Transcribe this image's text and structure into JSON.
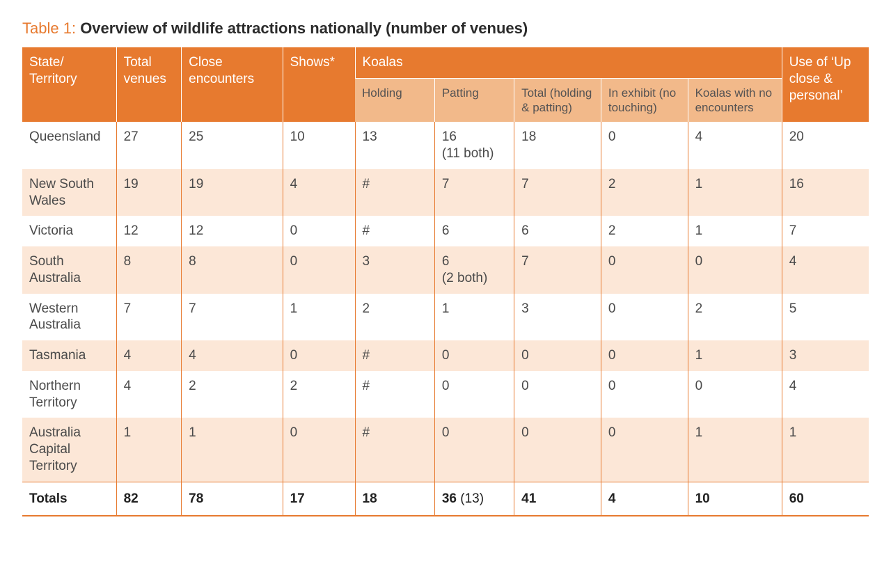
{
  "title": {
    "label": "Table 1:",
    "name": "Overview of wildlife attractions nationally (number of venues)"
  },
  "colors": {
    "header_bg": "#e77a2f",
    "subheader_bg": "#f2b98a",
    "stripe_bg": "#fce7d7",
    "rule": "#e77a2f",
    "header_text": "#ffffff",
    "body_text": "#4a4a4a"
  },
  "columns_top": {
    "state": "State/\nTerritory",
    "total_venues": "Total venues",
    "close_encounters": "Close encounters",
    "shows": "Shows*",
    "koalas": "Koalas",
    "use": "Use of ‘Up close & personal’"
  },
  "columns_sub": {
    "holding": "Holding",
    "patting": "Patting",
    "ktotal": "Total (holding & patting)",
    "kexhibit": "In exhibit (no touching)",
    "kno": "Koalas with no encounters"
  },
  "rows": [
    {
      "state": "Queensland",
      "total": "27",
      "close": "25",
      "shows": "10",
      "holding": "13",
      "patting": "16\n(11 both)",
      "ktotal": "18",
      "kexhibit": "0",
      "kno": "4",
      "use": "20"
    },
    {
      "state": "New South Wales",
      "total": "19",
      "close": "19",
      "shows": "4",
      "holding": "#",
      "patting": "7",
      "ktotal": "7",
      "kexhibit": "2",
      "kno": "1",
      "use": "16"
    },
    {
      "state": "Victoria",
      "total": "12",
      "close": "12",
      "shows": "0",
      "holding": "#",
      "patting": "6",
      "ktotal": "6",
      "kexhibit": "2",
      "kno": "1",
      "use": "7"
    },
    {
      "state": "South Australia",
      "total": "8",
      "close": "8",
      "shows": "0",
      "holding": "3",
      "patting": "6\n(2 both)",
      "ktotal": "7",
      "kexhibit": "0",
      "kno": "0",
      "use": "4"
    },
    {
      "state": "Western Australia",
      "total": "7",
      "close": "7",
      "shows": "1",
      "holding": "2",
      "patting": "1",
      "ktotal": "3",
      "kexhibit": "0",
      "kno": "2",
      "use": "5"
    },
    {
      "state": "Tasmania",
      "total": "4",
      "close": "4",
      "shows": "0",
      "holding": "#",
      "patting": "0",
      "ktotal": "0",
      "kexhibit": "0",
      "kno": "1",
      "use": "3"
    },
    {
      "state": "Northern Territory",
      "total": "4",
      "close": "2",
      "shows": "2",
      "holding": "#",
      "patting": "0",
      "ktotal": "0",
      "kexhibit": "0",
      "kno": "0",
      "use": "4"
    },
    {
      "state": "Australia Capital Territory",
      "total": "1",
      "close": "1",
      "shows": "0",
      "holding": "#",
      "patting": "0",
      "ktotal": "0",
      "kexhibit": "0",
      "kno": "1",
      "use": "1"
    }
  ],
  "stripe_indices": [
    1,
    3,
    5,
    7
  ],
  "totals": {
    "label": "Totals",
    "total": "82",
    "close": "78",
    "shows": "17",
    "holding": "18",
    "patting_main": "36",
    "patting_paren": "(13)",
    "ktotal": "41",
    "kexhibit": "4",
    "kno": "10",
    "use": "60"
  }
}
